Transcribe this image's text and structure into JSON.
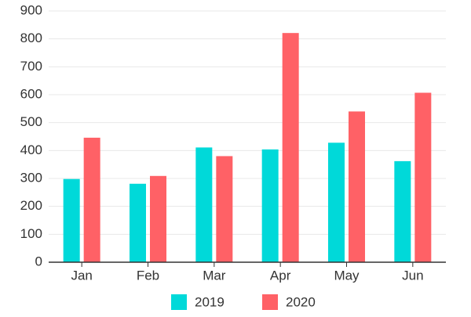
{
  "chart_data": {
    "type": "bar",
    "categories": [
      "Jan",
      "Feb",
      "Mar",
      "Apr",
      "May",
      "Jun"
    ],
    "series": [
      {
        "name": "2019",
        "color": "#00D9D9",
        "values": [
          298,
          281,
          411,
          404,
          428,
          362
        ]
      },
      {
        "name": "2020",
        "color": "#FF6166",
        "values": [
          446,
          309,
          380,
          821,
          540,
          607
        ]
      }
    ],
    "yticks": [
      0,
      100,
      200,
      300,
      400,
      500,
      600,
      700,
      800,
      900
    ],
    "ylim": [
      0,
      900
    ],
    "grid": true,
    "legend": "bottom-center",
    "colors": {
      "grid": "#e8e8e8",
      "axis": "#333333",
      "text": "#333333"
    }
  }
}
